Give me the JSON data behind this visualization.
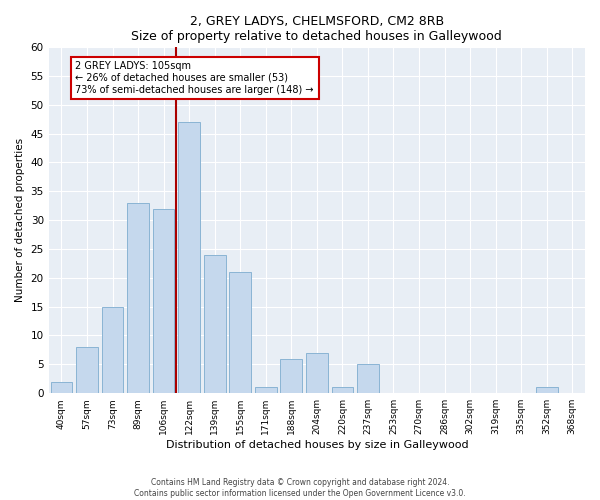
{
  "title": "2, GREY LADYS, CHELMSFORD, CM2 8RB",
  "subtitle": "Size of property relative to detached houses in Galleywood",
  "xlabel": "Distribution of detached houses by size in Galleywood",
  "ylabel": "Number of detached properties",
  "bar_color": "#c5d8ed",
  "bar_edgecolor": "#8ab4d4",
  "background_color": "#e8eef5",
  "categories": [
    "40sqm",
    "57sqm",
    "73sqm",
    "89sqm",
    "106sqm",
    "122sqm",
    "139sqm",
    "155sqm",
    "171sqm",
    "188sqm",
    "204sqm",
    "220sqm",
    "237sqm",
    "253sqm",
    "270sqm",
    "286sqm",
    "302sqm",
    "319sqm",
    "335sqm",
    "352sqm",
    "368sqm"
  ],
  "values": [
    2,
    8,
    15,
    33,
    32,
    47,
    24,
    21,
    1,
    6,
    7,
    1,
    5,
    0,
    0,
    0,
    0,
    0,
    0,
    1,
    0
  ],
  "ylim": [
    0,
    60
  ],
  "yticks": [
    0,
    5,
    10,
    15,
    20,
    25,
    30,
    35,
    40,
    45,
    50,
    55,
    60
  ],
  "marker_index": 4,
  "marker_line_color": "#aa0000",
  "annotation_line1": "2 GREY LADYS: 105sqm",
  "annotation_line2": "← 26% of detached houses are smaller (53)",
  "annotation_line3": "73% of semi-detached houses are larger (148) →",
  "footnote1": "Contains HM Land Registry data © Crown copyright and database right 2024.",
  "footnote2": "Contains public sector information licensed under the Open Government Licence v3.0."
}
